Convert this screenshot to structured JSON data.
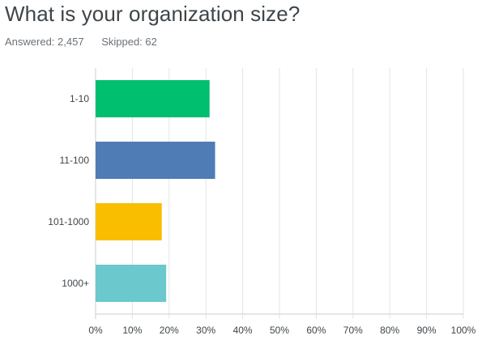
{
  "question": {
    "title": "What is your organization size?",
    "answered_label": "Answered: 2,457",
    "skipped_label": "Skipped: 62"
  },
  "colors": {
    "grid": "#e2e4e6",
    "axis": "#c9cdd0",
    "text": "#3f4549"
  },
  "chart_data": {
    "type": "bar",
    "orientation": "horizontal",
    "title": "What is your organization size?",
    "categories": [
      "1-10",
      "11-100",
      "101-1000",
      "1000+"
    ],
    "values": [
      31,
      32.5,
      18,
      19.2
    ],
    "colors": [
      "#00bf6f",
      "#507cb6",
      "#f9be00",
      "#6bc8cd"
    ],
    "xlim": [
      0,
      100
    ],
    "xticks": [
      "0%",
      "10%",
      "20%",
      "30%",
      "40%",
      "50%",
      "60%",
      "70%",
      "80%",
      "90%",
      "100%"
    ],
    "xlabel": "",
    "ylabel": "",
    "grid": true,
    "legend": "none"
  }
}
